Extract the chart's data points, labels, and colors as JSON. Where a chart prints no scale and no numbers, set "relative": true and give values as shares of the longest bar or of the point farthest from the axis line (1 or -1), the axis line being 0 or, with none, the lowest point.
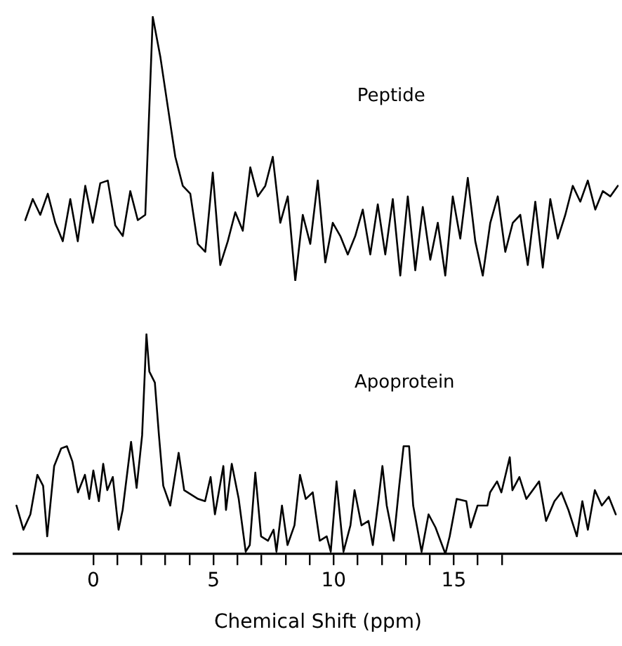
{
  "chart_data": [
    {
      "type": "line",
      "relative": true,
      "categories": [
        null,
        null,
        null,
        null,
        null,
        null,
        null,
        null,
        null,
        null,
        null,
        null,
        null,
        null,
        null,
        null,
        null,
        null,
        null,
        null,
        null,
        null,
        null,
        null,
        null,
        null,
        null,
        null,
        null,
        null,
        null,
        null,
        null,
        null,
        null,
        null,
        null,
        null,
        null,
        null,
        null,
        null,
        null,
        null,
        null,
        null,
        null,
        null,
        null,
        null,
        null,
        null,
        null,
        null,
        null,
        null,
        null,
        null,
        null,
        null,
        null,
        null,
        null,
        null,
        null,
        null,
        null,
        null,
        null,
        null,
        null,
        null,
        null,
        null,
        null,
        null,
        null,
        null,
        null,
        null
      ],
      "series": [
        {
          "name": "Peptide",
          "color": "#000000",
          "values": [
            0.23,
            0.31,
            0.25,
            0.33,
            0.22,
            0.15,
            0.31,
            0.15,
            0.36,
            0.22,
            0.37,
            0.38,
            0.21,
            0.17,
            0.34,
            0.23,
            0.25,
            1,
            0.85,
            0.66,
            0.47,
            0.36,
            0.33,
            0.14,
            0.11,
            0.41,
            0.06,
            0.15,
            0.26,
            0.19,
            0.43,
            0.32,
            0.36,
            0.47,
            0.22,
            0.32,
            0,
            0.25,
            0.14,
            0.38,
            0.07,
            0.22,
            0.17,
            0.1,
            0.17,
            0.27,
            0.1,
            0.29,
            0.1,
            0.31,
            0.02,
            0.32,
            0.04,
            0.28,
            0.08,
            0.22,
            0.02,
            0.32,
            0.16,
            0.39,
            0.15,
            0.02,
            0.22,
            0.32,
            0.11,
            0.22,
            0.25,
            0.06,
            0.3,
            0.05,
            0.31,
            0.16,
            0.25,
            0.36,
            0.3,
            0.38,
            0.27,
            0.34,
            0.32,
            0.36
          ]
        }
      ]
    },
    {
      "type": "line",
      "relative": true,
      "xlabel": "Chemical Shift (ppm)",
      "xlim": [
        -3.3,
        22
      ],
      "xticks": [
        0,
        {
          "value": 1,
          "label": null
        },
        {
          "value": 2,
          "label": null
        },
        {
          "value": 3,
          "label": null
        },
        {
          "value": 4,
          "label": null
        },
        5,
        {
          "value": 6,
          "label": null
        },
        {
          "value": 7,
          "label": null
        },
        {
          "value": 8,
          "label": null
        },
        {
          "value": 9,
          "label": null
        },
        10,
        {
          "value": 11,
          "label": null
        },
        {
          "value": 12,
          "label": null
        },
        {
          "value": 13,
          "label": null
        },
        {
          "value": 14,
          "label": null
        },
        15,
        {
          "value": 16,
          "label": null
        },
        {
          "value": 17,
          "label": null
        }
      ],
      "series": [
        {
          "name": "Apoprotein",
          "color": "#000000",
          "x": [
            -3.2,
            -2.91,
            -2.62,
            -2.33,
            -2.09,
            -1.92,
            -1.63,
            -1.34,
            -1.1,
            -0.87,
            -0.64,
            -0.35,
            -0.17,
            0,
            0.23,
            0.41,
            0.58,
            0.81,
            1.05,
            1.22,
            1.57,
            1.8,
            2.03,
            2.21,
            2.33,
            2.56,
            2.73,
            2.91,
            3.2,
            3.55,
            3.78,
            4.36,
            4.65,
            4.88,
            5.06,
            5.41,
            5.52,
            5.76,
            6.05,
            6.34,
            6.51,
            6.74,
            6.98,
            7.27,
            7.5,
            7.62,
            7.85,
            8.08,
            8.37,
            8.6,
            8.84,
            9.13,
            9.42,
            9.71,
            9.88,
            10.12,
            10.41,
            10.7,
            10.87,
            11.16,
            11.45,
            11.63,
            11.86,
            12.03,
            12.21,
            12.5,
            12.73,
            12.91,
            13.14,
            13.31,
            13.66,
            13.95,
            14.24,
            14.65,
            14.83,
            15.12,
            15.52,
            15.7,
            15.99,
            16.4,
            16.51,
            16.8,
            16.98,
            17.33,
            17.44,
            17.73,
            18.02,
            18.55,
            18.84,
            19.19,
            19.48,
            19.77,
            20.12,
            20.35,
            20.58,
            20.87,
            21.16,
            21.45,
            21.74
          ],
          "values": [
            0.22,
            0.11,
            0.18,
            0.36,
            0.31,
            0.08,
            0.4,
            0.48,
            0.49,
            0.42,
            0.28,
            0.36,
            0.25,
            0.38,
            0.24,
            0.41,
            0.29,
            0.35,
            0.11,
            0.2,
            0.51,
            0.3,
            0.54,
            1,
            0.83,
            0.78,
            0.54,
            0.31,
            0.22,
            0.46,
            0.29,
            0.25,
            0.24,
            0.35,
            0.18,
            0.4,
            0.2,
            0.41,
            0.25,
            0.01,
            0.04,
            0.37,
            0.08,
            0.06,
            0.11,
            0.01,
            0.22,
            0.04,
            0.13,
            0.36,
            0.25,
            0.28,
            0.06,
            0.08,
            0.01,
            0.33,
            0.01,
            0.13,
            0.29,
            0.13,
            0.15,
            0.04,
            0.24,
            0.4,
            0.22,
            0.06,
            0.31,
            0.49,
            0.49,
            0.22,
            0.01,
            0.18,
            0.12,
            0,
            0.08,
            0.25,
            0.24,
            0.12,
            0.22,
            0.22,
            0.28,
            0.33,
            0.28,
            0.44,
            0.29,
            0.35,
            0.25,
            0.33,
            0.15,
            0.24,
            0.28,
            0.2,
            0.08,
            0.24,
            0.11,
            0.29,
            0.22,
            0.26,
            0.18
          ]
        }
      ]
    }
  ]
}
